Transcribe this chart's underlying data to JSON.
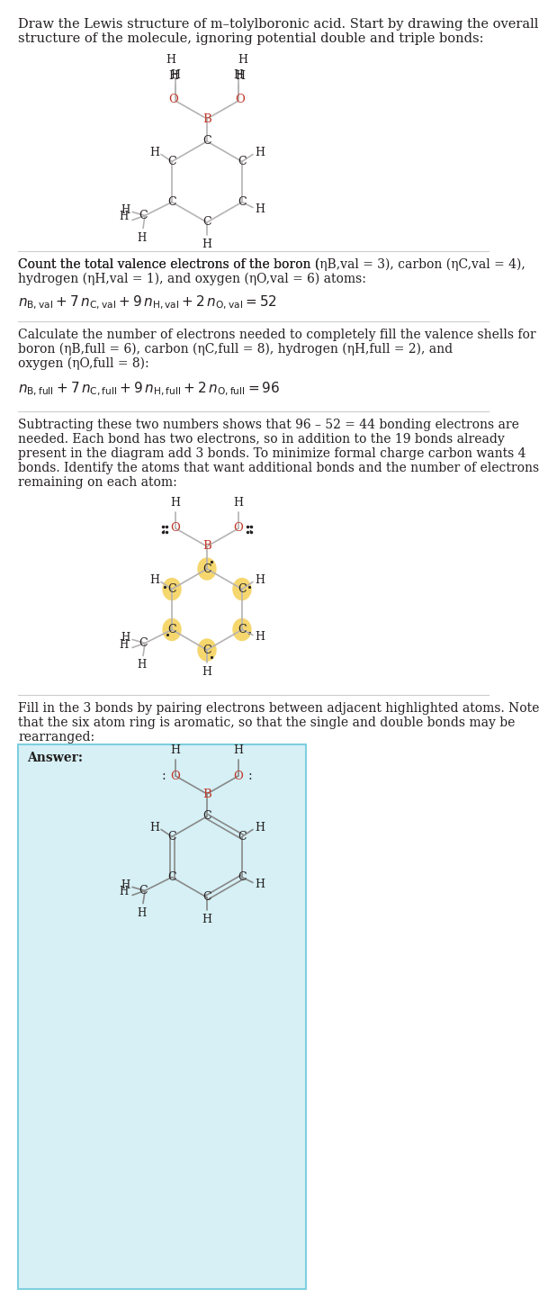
{
  "title_text": "Draw the Lewis structure of m–tolylboronic acid. Start by drawing the overall\nstructure of the molecule, ignoring potential double and triple bonds:",
  "section1_text": "Count the total valence electrons of the boron (η₂,val = 3), carbon (η₁,val = 4),\nhydrogen (η₃,val = 1), and oxygen (η₄,val = 6) atoms:",
  "section1_formula": "$n_{\\mathrm{B,val}} + 7\\,n_{\\mathrm{C,val}} + 9\\,n_{\\mathrm{H,val}} + 2\\,n_{\\mathrm{O,val}} = 52$",
  "section2_text": "Calculate the number of electrons needed to completely fill the valence shells for\nboron (η₅,full = 6), carbon (η₆,full = 8), hydrogen (η₇,full = 2), and\noxygen (η₈,full = 8):",
  "section2_formula": "$n_{\\mathrm{B,full}} + 7\\,n_{\\mathrm{C,full}} + 9\\,n_{\\mathrm{H,full}} + 2\\,n_{\\mathrm{O,full}} = 96$",
  "section3_text": "Subtracting these two numbers shows that 96 – 52 = 44 bonding electrons are\nneeded. Each bond has two electrons, so in addition to the 19 bonds already\npresent in the diagram add 3 bonds. To minimize formal charge carbon wants 4\nbonds. Identify the atoms that want additional bonds and the number of electrons\nremaining on each atom:",
  "section4_text": "Fill in the 3 bonds by pairing electrons between adjacent highlighted atoms. Note\nthat the six atom ring is aromatic, so that the single and double bonds may be\nrearranged:",
  "answer_text": "Answer:",
  "bg_color": "#ffffff",
  "text_color": "#231f20",
  "bond_color_diagram1": "#b5b2b2",
  "bond_color_diagram2": "#b5b2b2",
  "atom_C_color": "#231f20",
  "atom_H_color": "#231f20",
  "atom_B_color": "#c0392b",
  "atom_O_color": "#c0392b",
  "highlight_color": "#f5d76e",
  "answer_box_color": "#d6f0f5",
  "answer_border_color": "#7ecfdf"
}
